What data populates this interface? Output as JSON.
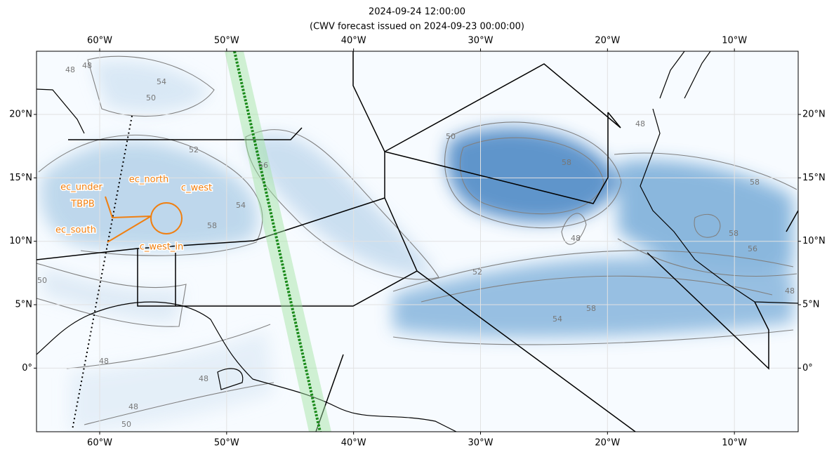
{
  "title": "2024-09-24 12:00:00",
  "subtitle": "(CWV forecast issued on 2024-09-23 00:00:00)",
  "lon_labels": [
    "60°W",
    "50°W",
    "40°W",
    "30°W",
    "20°W",
    "10°W"
  ],
  "lat_labels": [
    "20°N",
    "15°N",
    "10°N",
    "5°N",
    "0°"
  ],
  "annotations": [
    "ec_under",
    "ec_north",
    "c_west",
    "TBPB",
    "ec_south",
    "c_west_in"
  ],
  "contour_labels": [
    "48",
    "48",
    "50",
    "54",
    "52",
    "56",
    "54",
    "58",
    "50",
    "58",
    "48",
    "58",
    "54",
    "52",
    "48",
    "58",
    "58",
    "56",
    "48",
    "48",
    "50",
    "50",
    "48",
    "48"
  ]
}
